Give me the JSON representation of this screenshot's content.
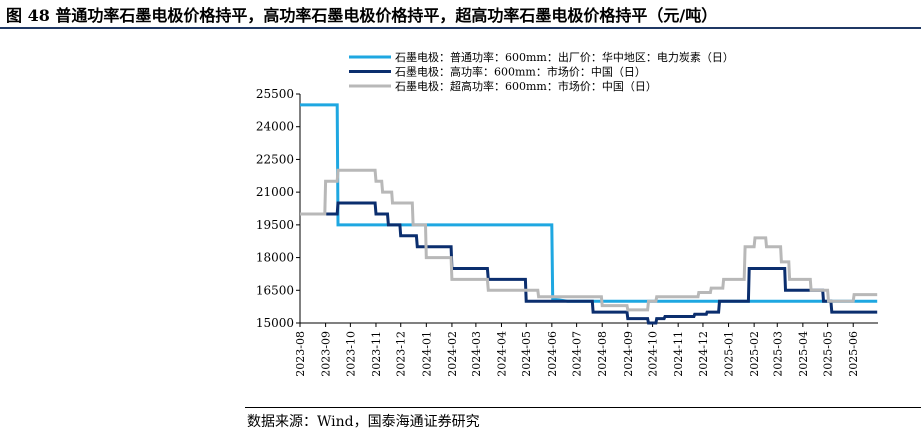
{
  "figure_title": "图 48 普通功率石墨电极价格持平，高功率石墨电极价格持平，超高功率石墨电极价格持平（元/吨）",
  "source": "数据来源：Wind，国泰海通证券研究",
  "colors": {
    "s1": "#1ea7e1",
    "s2": "#0b2e6e",
    "s3": "#b8b8b8",
    "title_rule": "#1f3864"
  },
  "chart_data": {
    "type": "line",
    "title": "",
    "xlabel": "",
    "ylabel": "",
    "ylim": [
      15000,
      25500
    ],
    "yticks": [
      15000,
      16500,
      18000,
      19500,
      21000,
      22500,
      24000,
      25500
    ],
    "ytick_labels": [
      "15000",
      "16500",
      "18000",
      "19500",
      "21000",
      "22500",
      "24000",
      "25500"
    ],
    "xlim": [
      "2023-08-01",
      "2025-07-01"
    ],
    "xticks": [
      "2023-08-01",
      "2023-09-01",
      "2023-10-01",
      "2023-11-01",
      "2023-12-01",
      "2024-01-01",
      "2024-02-01",
      "2024-03-01",
      "2024-04-01",
      "2024-05-01",
      "2024-06-01",
      "2024-07-01",
      "2024-08-01",
      "2024-09-01",
      "2024-10-01",
      "2024-11-01",
      "2024-12-01",
      "2025-01-01",
      "2025-02-01",
      "2025-03-01",
      "2025-04-01",
      "2025-05-01",
      "2025-06-01"
    ],
    "xtick_labels": [
      "2023-08",
      "2023-09",
      "2023-10",
      "2023-11",
      "2023-12",
      "2024-01",
      "2024-02",
      "2024-03",
      "2024-04",
      "2024-05",
      "2024-06",
      "2024-07",
      "2024-08",
      "2024-09",
      "2024-10",
      "2024-11",
      "2024-12",
      "2025-01",
      "2025-02",
      "2025-03",
      "2025-04",
      "2025-05",
      "2025-06"
    ],
    "grid": false,
    "legend_position": "top-left",
    "series": [
      {
        "name": "石墨电极：普通功率：600mm：出厂价：华中地区：电力炭素（日）",
        "color": "#1ea7e1",
        "points": [
          [
            "2023-08-01",
            25000
          ],
          [
            "2023-09-15",
            25000
          ],
          [
            "2023-09-16",
            19500
          ],
          [
            "2024-06-01",
            19500
          ],
          [
            "2024-06-02",
            16100
          ],
          [
            "2024-06-20",
            16000
          ],
          [
            "2025-06-30",
            16000
          ]
        ]
      },
      {
        "name": "石墨电极：高功率：600mm：市场价：中国（日）",
        "color": "#0b2e6e",
        "points": [
          [
            "2023-08-01",
            20000
          ],
          [
            "2023-09-15",
            20000
          ],
          [
            "2023-09-16",
            20500
          ],
          [
            "2023-10-31",
            20500
          ],
          [
            "2023-11-01",
            20000
          ],
          [
            "2023-11-15",
            20000
          ],
          [
            "2023-11-16",
            19500
          ],
          [
            "2023-11-30",
            19500
          ],
          [
            "2023-12-01",
            19000
          ],
          [
            "2023-12-20",
            19000
          ],
          [
            "2023-12-21",
            18500
          ],
          [
            "2024-01-31",
            18500
          ],
          [
            "2024-02-01",
            17500
          ],
          [
            "2024-03-15",
            17500
          ],
          [
            "2024-03-16",
            17000
          ],
          [
            "2024-04-30",
            17000
          ],
          [
            "2024-05-01",
            16000
          ],
          [
            "2024-07-20",
            16000
          ],
          [
            "2024-07-21",
            15500
          ],
          [
            "2024-08-31",
            15500
          ],
          [
            "2024-09-01",
            15200
          ],
          [
            "2024-09-25",
            15200
          ],
          [
            "2024-09-26",
            15000
          ],
          [
            "2024-10-05",
            15000
          ],
          [
            "2024-10-06",
            15200
          ],
          [
            "2024-10-15",
            15200
          ],
          [
            "2024-10-16",
            15300
          ],
          [
            "2024-11-20",
            15300
          ],
          [
            "2024-11-21",
            15400
          ],
          [
            "2024-12-05",
            15400
          ],
          [
            "2024-12-06",
            15500
          ],
          [
            "2024-12-20",
            15500
          ],
          [
            "2024-12-21",
            16000
          ],
          [
            "2025-01-25",
            16000
          ],
          [
            "2025-01-26",
            17500
          ],
          [
            "2025-03-10",
            17500
          ],
          [
            "2025-03-11",
            16500
          ],
          [
            "2025-04-25",
            16500
          ],
          [
            "2025-04-26",
            16000
          ],
          [
            "2025-05-05",
            16000
          ],
          [
            "2025-05-06",
            15500
          ],
          [
            "2025-06-30",
            15500
          ]
        ]
      },
      {
        "name": "石墨电极：超高功率：600mm：市场价：中国（日）",
        "color": "#b8b8b8",
        "points": [
          [
            "2023-08-01",
            20000
          ],
          [
            "2023-08-31",
            20000
          ],
          [
            "2023-09-01",
            21500
          ],
          [
            "2023-09-15",
            21500
          ],
          [
            "2023-09-16",
            22000
          ],
          [
            "2023-10-31",
            22000
          ],
          [
            "2023-11-01",
            21500
          ],
          [
            "2023-11-08",
            21500
          ],
          [
            "2023-11-09",
            21000
          ],
          [
            "2023-11-20",
            21000
          ],
          [
            "2023-11-21",
            20500
          ],
          [
            "2023-12-15",
            20500
          ],
          [
            "2023-12-16",
            19500
          ],
          [
            "2023-12-31",
            19500
          ],
          [
            "2024-01-01",
            18000
          ],
          [
            "2024-01-31",
            18000
          ],
          [
            "2024-02-01",
            17000
          ],
          [
            "2024-03-15",
            17000
          ],
          [
            "2024-03-16",
            16500
          ],
          [
            "2024-05-15",
            16500
          ],
          [
            "2024-05-16",
            16200
          ],
          [
            "2024-07-31",
            16200
          ],
          [
            "2024-08-01",
            15800
          ],
          [
            "2024-08-31",
            15800
          ],
          [
            "2024-09-01",
            15600
          ],
          [
            "2024-09-25",
            15600
          ],
          [
            "2024-09-26",
            16000
          ],
          [
            "2024-10-05",
            16000
          ],
          [
            "2024-10-06",
            16200
          ],
          [
            "2024-11-25",
            16200
          ],
          [
            "2024-11-26",
            16400
          ],
          [
            "2024-12-10",
            16400
          ],
          [
            "2024-12-11",
            16600
          ],
          [
            "2024-12-25",
            16600
          ],
          [
            "2024-12-26",
            17000
          ],
          [
            "2025-01-20",
            17000
          ],
          [
            "2025-01-21",
            18500
          ],
          [
            "2025-02-01",
            18500
          ],
          [
            "2025-02-02",
            18900
          ],
          [
            "2025-02-15",
            18900
          ],
          [
            "2025-02-16",
            18500
          ],
          [
            "2025-03-05",
            18500
          ],
          [
            "2025-03-06",
            17800
          ],
          [
            "2025-03-15",
            17800
          ],
          [
            "2025-03-16",
            17000
          ],
          [
            "2025-04-10",
            17000
          ],
          [
            "2025-04-11",
            16500
          ],
          [
            "2025-05-01",
            16500
          ],
          [
            "2025-05-02",
            16000
          ],
          [
            "2025-06-01",
            16000
          ],
          [
            "2025-06-02",
            16300
          ],
          [
            "2025-06-30",
            16300
          ]
        ]
      }
    ]
  }
}
